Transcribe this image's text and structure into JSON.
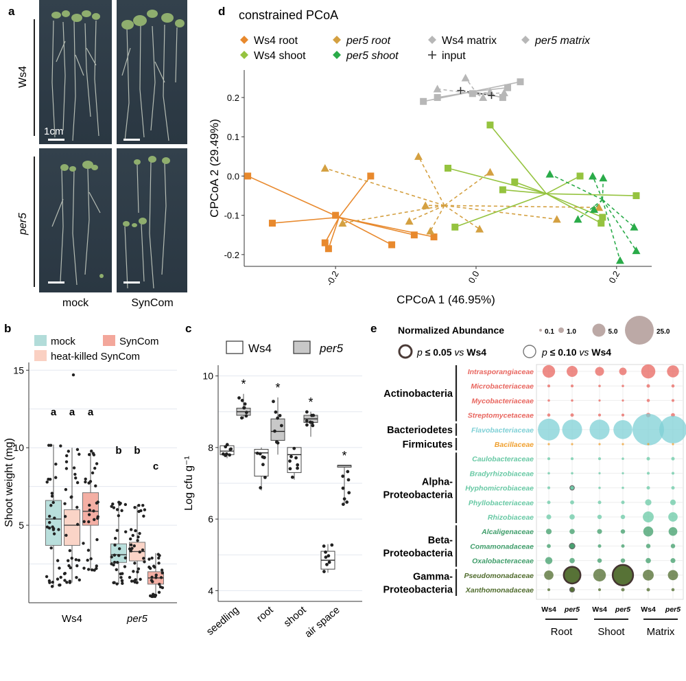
{
  "panel_labels": {
    "a": "a",
    "b": "b",
    "c": "c",
    "d": "d",
    "e": "e"
  },
  "panel_a": {
    "row_labels": [
      "Ws4",
      "per5"
    ],
    "col_labels": [
      "mock",
      "SynCom"
    ],
    "scale_bar": "1cm"
  },
  "chart_data": [
    {
      "panel": "b",
      "type": "box",
      "ylabel": "Shoot weight (mg)",
      "ylim": [
        0,
        15.5
      ],
      "yticks": [
        5,
        10,
        15
      ],
      "legend": [
        "mock",
        "SynCom",
        "heat-killed SynCom"
      ],
      "colors": {
        "mock": "#b2dcd9",
        "SynCom": "#f3a79b",
        "heat-killed SynCom": "#fad0c2"
      },
      "categories": [
        "Ws4",
        "per5"
      ],
      "boxes": [
        {
          "group": "Ws4",
          "series": "mock",
          "q1": 3.7,
          "median": 5.4,
          "q3": 6.6,
          "lo": 1.0,
          "hi": 10.2,
          "letter": "a"
        },
        {
          "group": "Ws4",
          "series": "heat-killed SynCom",
          "q1": 3.7,
          "median": 5.0,
          "q3": 6.0,
          "lo": 1.3,
          "hi": 10.0,
          "outlier": 14.7,
          "letter": "a"
        },
        {
          "group": "Ws4",
          "series": "SynCom",
          "q1": 5.0,
          "median": 5.9,
          "q3": 7.1,
          "lo": 2.1,
          "hi": 9.8,
          "letter": "a"
        },
        {
          "group": "per5",
          "series": "mock",
          "q1": 2.6,
          "median": 3.1,
          "q3": 3.8,
          "lo": 1.2,
          "hi": 6.5,
          "letter": "b"
        },
        {
          "group": "per5",
          "series": "heat-killed SynCom",
          "q1": 2.7,
          "median": 3.3,
          "q3": 3.9,
          "lo": 1.3,
          "hi": 6.3,
          "letter": "b"
        },
        {
          "group": "per5",
          "series": "SynCom",
          "q1": 1.2,
          "median": 1.6,
          "q3": 2.0,
          "lo": 0.4,
          "hi": 3.2,
          "letter": "c"
        }
      ]
    },
    {
      "panel": "c",
      "type": "box",
      "ylabel": "Log cfu g⁻¹",
      "ylim": [
        3.7,
        10.3
      ],
      "yticks": [
        4,
        6,
        8,
        10
      ],
      "legend": [
        "Ws4",
        "per5"
      ],
      "categories": [
        "seedling",
        "root",
        "shoot",
        "air space"
      ],
      "boxes": [
        {
          "group": "seedling",
          "series": "Ws4",
          "q1": 7.8,
          "median": 7.9,
          "q3": 8.05,
          "lo": 7.7,
          "hi": 8.1
        },
        {
          "group": "seedling",
          "series": "per5",
          "q1": 8.9,
          "median": 9.0,
          "q3": 9.1,
          "lo": 8.8,
          "hi": 9.5,
          "sig": "*"
        },
        {
          "group": "root",
          "series": "Ws4",
          "q1": 7.2,
          "median": 7.85,
          "q3": 7.95,
          "lo": 6.8,
          "hi": 8.0
        },
        {
          "group": "root",
          "series": "per5",
          "q1": 8.2,
          "median": 8.45,
          "q3": 8.8,
          "lo": 7.8,
          "hi": 9.4,
          "sig": "*"
        },
        {
          "group": "shoot",
          "series": "Ws4",
          "q1": 7.3,
          "median": 7.8,
          "q3": 8.0,
          "lo": 7.1,
          "hi": 8.0
        },
        {
          "group": "shoot",
          "series": "per5",
          "q1": 8.7,
          "median": 8.8,
          "q3": 8.9,
          "lo": 8.3,
          "hi": 9.0,
          "sig": "*"
        },
        {
          "group": "air space",
          "series": "Ws4",
          "q1": 4.6,
          "median": 4.85,
          "q3": 5.1,
          "lo": 4.5,
          "hi": 5.3
        },
        {
          "group": "air space",
          "series": "per5",
          "q1": 7.45,
          "median": 7.5,
          "q3": 7.5,
          "lo": 6.4,
          "hi": 7.5,
          "sig": "*"
        }
      ]
    },
    {
      "panel": "d",
      "type": "scatter",
      "title": "constrained PCoA",
      "xlabel": "CPCoA 1 (46.95%)",
      "ylabel": "CPCoA 2 (29.49%)",
      "xlim": [
        -0.33,
        0.25
      ],
      "ylim": [
        -0.23,
        0.27
      ],
      "xticks": [
        -0.2,
        0.0,
        0.2
      ],
      "yticks": [
        -0.2,
        -0.1,
        0.0,
        0.1,
        0.2
      ],
      "legend": [
        "Ws4 root",
        "per5 root",
        "Ws4 matrix",
        "per5 matrix",
        "Ws4 shoot",
        "per5 shoot",
        "input"
      ],
      "series": [
        {
          "name": "Ws4 root",
          "color": "#e8892d",
          "marker": "square",
          "centroid": [
            -0.195,
            -0.105
          ],
          "points": [
            [
              -0.325,
              0.0
            ],
            [
              -0.29,
              -0.12
            ],
            [
              -0.215,
              -0.17
            ],
            [
              -0.21,
              -0.185
            ],
            [
              -0.2,
              -0.1
            ],
            [
              -0.15,
              0.0
            ],
            [
              -0.12,
              -0.175
            ],
            [
              -0.088,
              -0.15
            ],
            [
              -0.06,
              -0.155
            ]
          ]
        },
        {
          "name": "per5 root",
          "color": "#d4a041",
          "marker": "triangle",
          "centroid": [
            -0.045,
            -0.075
          ],
          "points": [
            [
              -0.215,
              0.02
            ],
            [
              -0.19,
              -0.12
            ],
            [
              -0.082,
              0.05
            ],
            [
              -0.072,
              -0.075
            ],
            [
              -0.095,
              -0.115
            ],
            [
              -0.065,
              -0.14
            ],
            [
              0.005,
              -0.135
            ],
            [
              0.02,
              0.01
            ],
            [
              0.175,
              -0.08
            ],
            [
              0.115,
              -0.11
            ]
          ]
        },
        {
          "name": "Ws4 shoot",
          "color": "#95c33f",
          "marker": "square",
          "centroid": [
            0.1,
            -0.045
          ],
          "points": [
            [
              0.02,
              0.13
            ],
            [
              -0.04,
              0.02
            ],
            [
              -0.03,
              -0.13
            ],
            [
              0.038,
              -0.035
            ],
            [
              0.055,
              -0.015
            ],
            [
              0.148,
              0.0
            ],
            [
              0.178,
              -0.12
            ],
            [
              0.18,
              -0.105
            ],
            [
              0.228,
              -0.05
            ]
          ]
        },
        {
          "name": "per5 shoot",
          "color": "#2aab49",
          "marker": "triangle",
          "centroid": [
            0.18,
            -0.06
          ],
          "points": [
            [
              0.105,
              0.005
            ],
            [
              0.166,
              0.0
            ],
            [
              0.181,
              -0.005
            ],
            [
              0.168,
              -0.085
            ],
            [
              0.145,
              -0.11
            ],
            [
              0.225,
              -0.13
            ],
            [
              0.228,
              -0.19
            ],
            [
              0.205,
              -0.215
            ]
          ]
        },
        {
          "name": "Ws4 matrix",
          "color": "#b7b7b7",
          "marker": "square",
          "centroid": [
            -0.005,
            0.215
          ],
          "points": [
            [
              -0.075,
              0.19
            ],
            [
              -0.055,
              0.2
            ],
            [
              -0.005,
              0.21
            ],
            [
              0.045,
              0.225
            ],
            [
              0.063,
              0.24
            ],
            [
              0.038,
              0.2
            ]
          ]
        },
        {
          "name": "per5 matrix",
          "color": "#b7b7b7",
          "marker": "triangle",
          "centroid": [
            0.002,
            0.208
          ],
          "points": [
            [
              -0.055,
              0.222
            ],
            [
              -0.015,
              0.25
            ],
            [
              0.01,
              0.2
            ],
            [
              0.04,
              0.212
            ],
            [
              0.02,
              0.215
            ]
          ]
        },
        {
          "name": "input",
          "color": "#333333",
          "marker": "plus",
          "points": [
            [
              -0.022,
              0.218
            ],
            [
              0.022,
              0.205
            ]
          ]
        }
      ]
    },
    {
      "panel": "e",
      "type": "bubble",
      "title": "Normalized Abundance",
      "size_legend": [
        "0.1",
        "1.0",
        "5.0",
        "25.0"
      ],
      "sig_legend": [
        {
          "text": "p ≤ 0.05 vs Ws4",
          "strong": "p ≤ 0.05"
        },
        {
          "text": "p ≤ 0.10 vs Ws4",
          "strong": "p ≤ 0.10"
        }
      ],
      "sig_legend_parts": {
        "p": "p",
        "le05": " ≤ 0.05 ",
        "le10": " ≤ 0.10 ",
        "vs": "vs",
        "ws4": " Ws4"
      },
      "columns": [
        "Ws4",
        "per5",
        "Ws4",
        "per5",
        "Ws4",
        "per5"
      ],
      "column_groups": [
        "Root",
        "Shoot",
        "Matrix"
      ],
      "phyla": [
        "Actinobacteria",
        "Bacteriodetes",
        "Firmicutes",
        "Alpha-\nProteobacteria",
        "Beta-\nProteobacteria",
        "Gamma-\nProteobacteria"
      ],
      "families": [
        {
          "name": "Intrasporangiaceae",
          "phylum": "Actinobacteria",
          "color": "#e8665f",
          "values": [
            4.0,
            3.0,
            2.0,
            1.4,
            5.0,
            3.6
          ]
        },
        {
          "name": "Microbacteriaceae",
          "phylum": "Actinobacteria",
          "color": "#e8665f",
          "values": [
            0.2,
            0.2,
            0.15,
            0.15,
            0.3,
            0.25
          ]
        },
        {
          "name": "Mycobacteriaceae",
          "phylum": "Actinobacteria",
          "color": "#e8665f",
          "values": [
            0.15,
            0.15,
            0.12,
            0.12,
            0.25,
            0.2
          ]
        },
        {
          "name": "Streptomycetaceae",
          "phylum": "Actinobacteria",
          "color": "#e8665f",
          "values": [
            0.25,
            0.3,
            0.2,
            0.2,
            0.5,
            0.4
          ]
        },
        {
          "name": "Flavobacteriaceae",
          "phylum": "Bacteriodetes",
          "color": "#7fd0d6",
          "values": [
            12,
            10,
            10,
            9,
            25,
            19
          ]
        },
        {
          "name": "Bacillaceae",
          "phylum": "Firmicutes",
          "color": "#f0a030",
          "values": [
            0.1,
            0.1,
            0.1,
            0.1,
            0.12,
            0.12
          ]
        },
        {
          "name": "Caulobacteraceae",
          "phylum": "Alpha-Proteobacteria",
          "color": "#69c9a5",
          "values": [
            0.2,
            0.2,
            0.2,
            0.15,
            0.3,
            0.3
          ]
        },
        {
          "name": "Bradyrhizobiaceae",
          "phylum": "Alpha-Proteobacteria",
          "color": "#69c9a5",
          "values": [
            0.15,
            0.15,
            0.12,
            0.12,
            0.2,
            0.2
          ]
        },
        {
          "name": "Hyphomicrobiaceae",
          "phylum": "Alpha-Proteobacteria",
          "color": "#69c9a5",
          "values": [
            0.2,
            0.5,
            0.15,
            0.15,
            0.3,
            0.3
          ],
          "sig10": [
            1
          ]
        },
        {
          "name": "Phyllobacteriaceae",
          "phylum": "Alpha-Proteobacteria",
          "color": "#69c9a5",
          "values": [
            0.3,
            0.4,
            0.3,
            0.3,
            1.0,
            0.8
          ]
        },
        {
          "name": "Rhizobiaceae",
          "phylum": "Alpha-Proteobacteria",
          "color": "#69c9a5",
          "values": [
            0.6,
            0.7,
            0.5,
            0.5,
            3.0,
            2.2
          ]
        },
        {
          "name": "Alcaligenaceae",
          "phylum": "Beta-Proteobacteria",
          "color": "#3f9d6a",
          "values": [
            0.8,
            0.7,
            0.6,
            0.5,
            2.5,
            1.9
          ]
        },
        {
          "name": "Comamonadaceae",
          "phylum": "Beta-Proteobacteria",
          "color": "#3f9d6a",
          "values": [
            0.4,
            0.8,
            0.3,
            0.3,
            0.5,
            0.5
          ],
          "sig10": [
            1
          ]
        },
        {
          "name": "Oxalobacteraceae",
          "phylum": "Beta-Proteobacteria",
          "color": "#3f9d6a",
          "values": [
            1.3,
            0.7,
            0.5,
            0.5,
            0.7,
            0.6
          ]
        },
        {
          "name": "Pseudomonadaceae",
          "phylum": "Gamma-Proteobacteria",
          "color": "#4f6b2c",
          "values": [
            2.2,
            7.0,
            4.0,
            10.5,
            3.0,
            2.6
          ],
          "sig05": [
            1,
            3
          ]
        },
        {
          "name": "Xanthomonadaceae",
          "phylum": "Gamma-Proteobacteria",
          "color": "#4f6b2c",
          "values": [
            0.2,
            0.6,
            0.2,
            0.3,
            0.3,
            0.25
          ],
          "sig10": [
            1
          ]
        }
      ]
    }
  ]
}
